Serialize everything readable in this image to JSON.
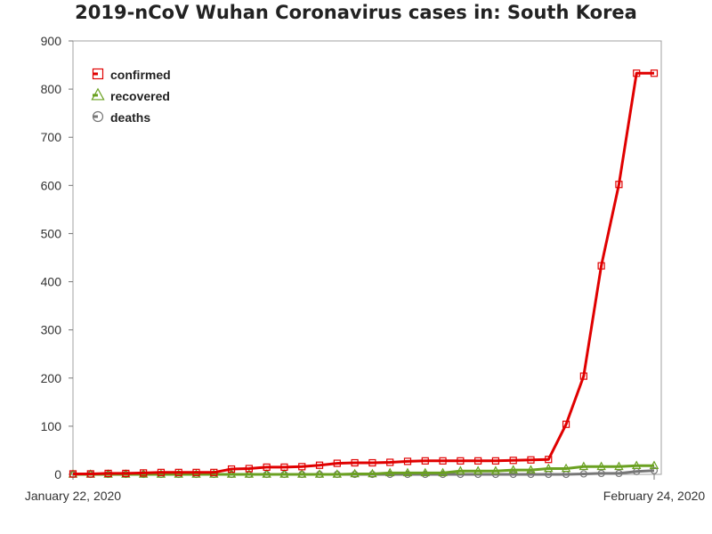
{
  "chart_data": {
    "type": "line",
    "title": "2019-nCoV Wuhan Coronavirus cases in: South Korea",
    "xlabel": "",
    "ylabel": "",
    "x_tick_labels": [
      "January 22, 2020",
      "February 24, 2020"
    ],
    "x": [
      "2020-01-22",
      "2020-01-23",
      "2020-01-24",
      "2020-01-25",
      "2020-01-26",
      "2020-01-27",
      "2020-01-28",
      "2020-01-29",
      "2020-01-30",
      "2020-01-31",
      "2020-02-01",
      "2020-02-02",
      "2020-02-03",
      "2020-02-04",
      "2020-02-05",
      "2020-02-06",
      "2020-02-07",
      "2020-02-08",
      "2020-02-09",
      "2020-02-10",
      "2020-02-11",
      "2020-02-12",
      "2020-02-13",
      "2020-02-14",
      "2020-02-15",
      "2020-02-16",
      "2020-02-17",
      "2020-02-18",
      "2020-02-19",
      "2020-02-20",
      "2020-02-21",
      "2020-02-22",
      "2020-02-23",
      "2020-02-24"
    ],
    "ylim": [
      0,
      900
    ],
    "y_ticks": [
      0,
      100,
      200,
      300,
      400,
      500,
      600,
      700,
      800,
      900
    ],
    "grid": false,
    "legend_position": "top-left",
    "series": [
      {
        "name": "confirmed",
        "color": "#e00000",
        "marker": "square",
        "values": [
          1,
          1,
          2,
          2,
          3,
          4,
          4,
          4,
          4,
          11,
          12,
          15,
          15,
          16,
          19,
          23,
          24,
          24,
          25,
          27,
          28,
          28,
          28,
          28,
          28,
          29,
          30,
          31,
          104,
          204,
          433,
          602,
          833,
          833
        ]
      },
      {
        "name": "recovered",
        "color": "#6aa121",
        "marker": "triangle",
        "values": [
          0,
          0,
          0,
          0,
          0,
          0,
          0,
          0,
          0,
          0,
          0,
          0,
          0,
          0,
          0,
          0,
          1,
          1,
          3,
          3,
          3,
          3,
          7,
          7,
          7,
          9,
          9,
          12,
          12,
          16,
          16,
          16,
          18,
          18
        ]
      },
      {
        "name": "deaths",
        "color": "#777777",
        "marker": "circle",
        "values": [
          0,
          0,
          0,
          0,
          0,
          0,
          0,
          0,
          0,
          0,
          0,
          0,
          0,
          0,
          0,
          0,
          0,
          0,
          0,
          0,
          0,
          0,
          0,
          0,
          0,
          0,
          0,
          0,
          0,
          1,
          2,
          2,
          6,
          8
        ]
      }
    ]
  }
}
